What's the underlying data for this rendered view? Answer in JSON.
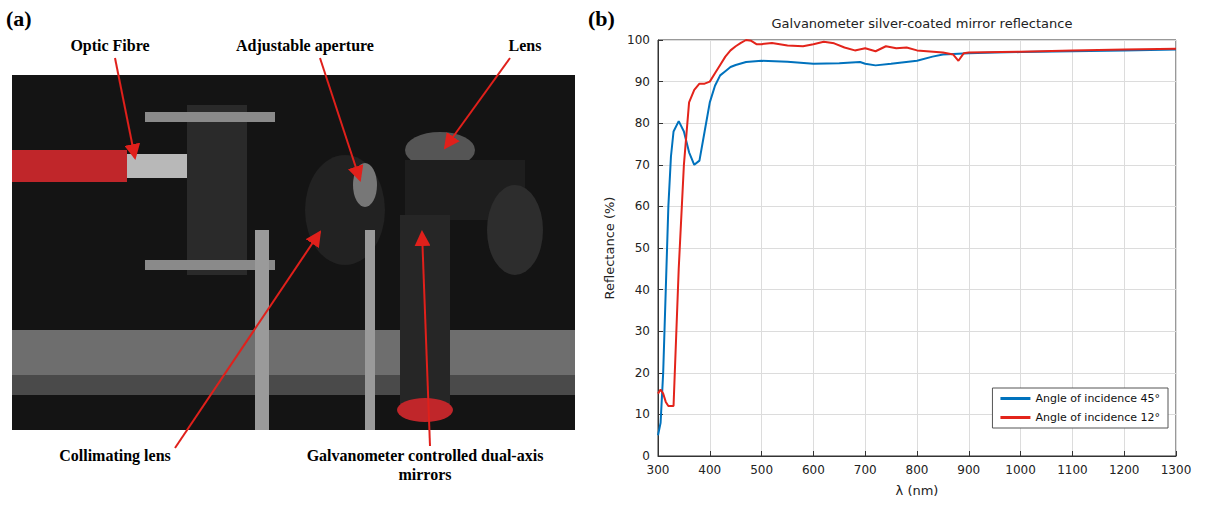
{
  "photo": {
    "panel_label": "(a)",
    "labels": [
      "Optic Fibre",
      "Adjustable aperture",
      "Lens",
      "Collimating lens",
      "Galvanometer controlled dual-axis mirrors"
    ]
  },
  "chart_data": {
    "type": "line",
    "panel_label": "(b)",
    "title": "Galvanometer silver-coated mirror reflectance",
    "x_label": "λ (nm)",
    "y_label": "Reflectance (%)",
    "xlim": [
      300,
      1300
    ],
    "xticks": [
      300,
      400,
      500,
      600,
      700,
      800,
      900,
      1000,
      1100,
      1200,
      1300
    ],
    "ylim": [
      0,
      100
    ],
    "yticks": [
      0,
      10,
      20,
      30,
      40,
      50,
      60,
      70,
      80,
      90,
      100
    ],
    "grid": true,
    "legend": "lower right",
    "series": [
      {
        "name": "Angle of incidence 45°",
        "color": "#0072bd",
        "x": [
          300,
          305,
          310,
          315,
          320,
          325,
          330,
          340,
          350,
          360,
          370,
          380,
          390,
          400,
          410,
          420,
          430,
          440,
          450,
          470,
          500,
          550,
          600,
          650,
          690,
          700,
          720,
          750,
          800,
          830,
          850,
          900,
          950,
          1000,
          1100,
          1200,
          1300
        ],
        "values": [
          5,
          8,
          20,
          40,
          60,
          72,
          78,
          80.5,
          78,
          73,
          70,
          71,
          78,
          85,
          89,
          91.5,
          92.5,
          93.5,
          94,
          94.7,
          95,
          94.8,
          94.3,
          94.4,
          94.7,
          94.3,
          93.9,
          94.3,
          95,
          96,
          96.5,
          96.8,
          97,
          97.1,
          97.3,
          97.5,
          97.7
        ]
      },
      {
        "name": "Angle of incidence 12°",
        "color": "#e3241b",
        "x": [
          300,
          305,
          310,
          315,
          320,
          330,
          340,
          350,
          360,
          370,
          380,
          390,
          400,
          410,
          420,
          430,
          440,
          450,
          460,
          470,
          480,
          490,
          500,
          520,
          550,
          580,
          600,
          620,
          640,
          660,
          680,
          700,
          720,
          740,
          760,
          780,
          800,
          850,
          870,
          880,
          890,
          900,
          1000,
          1100,
          1200,
          1300
        ],
        "values": [
          15,
          16,
          15,
          13,
          12,
          12,
          45,
          70,
          85,
          88,
          89.5,
          89.5,
          90,
          92,
          94,
          96,
          97.5,
          98.5,
          99.3,
          100,
          99.8,
          99,
          99,
          99.3,
          98.7,
          98.5,
          99,
          99.6,
          99.2,
          98.2,
          97.5,
          98,
          97.3,
          98.5,
          98,
          98.2,
          97.5,
          97,
          96.5,
          95,
          96.8,
          97,
          97.2,
          97.5,
          97.7,
          97.9
        ]
      }
    ]
  }
}
